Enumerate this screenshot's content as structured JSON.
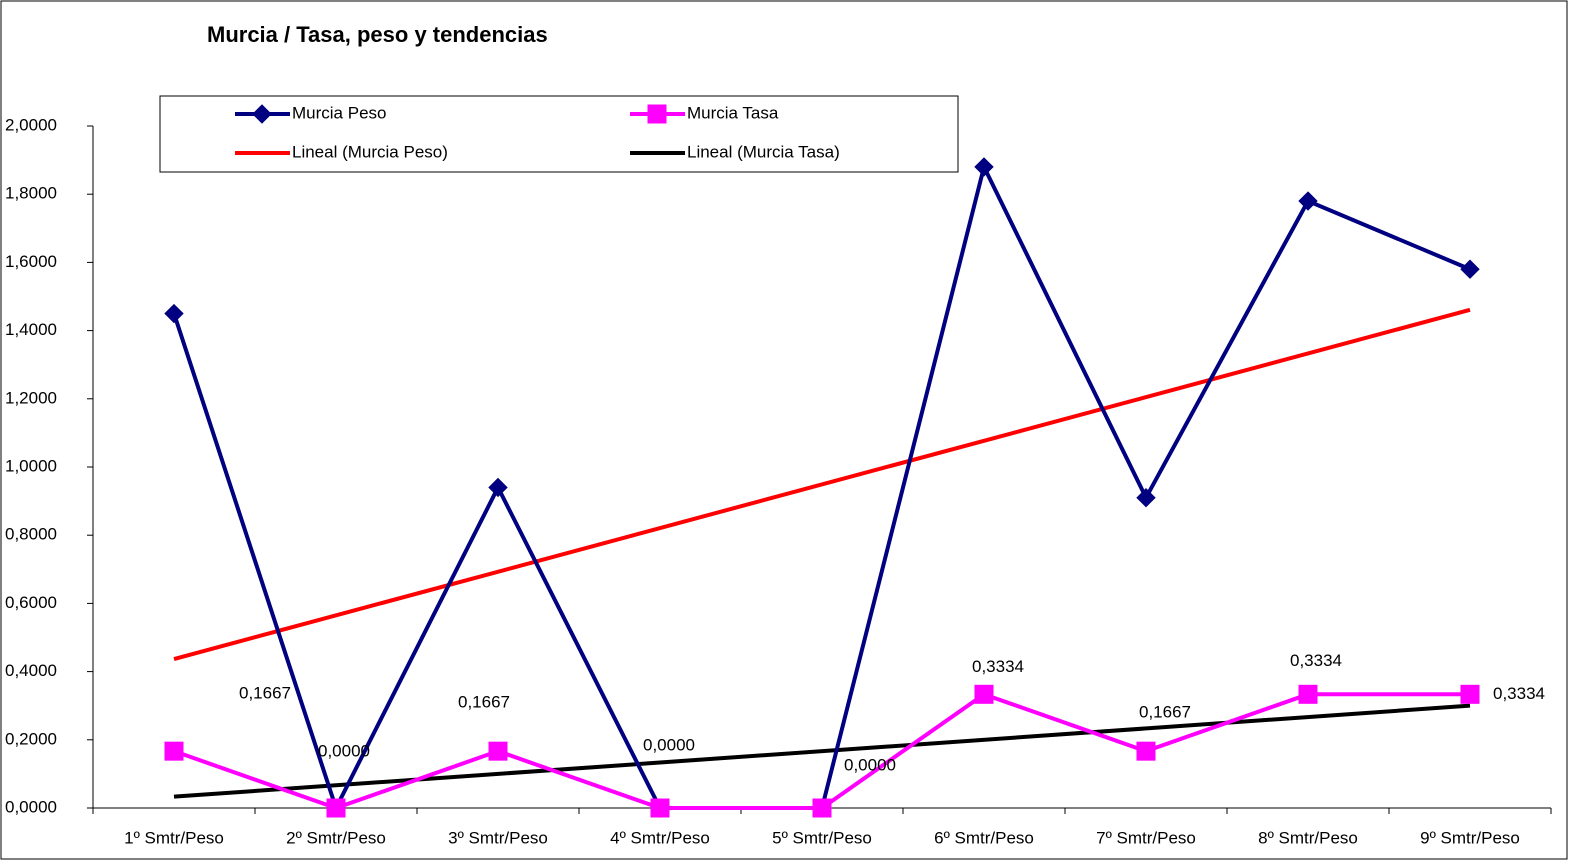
{
  "chart_data": {
    "type": "line",
    "title": "Murcia / Tasa, peso y tendencias",
    "categories": [
      "1º Smtr/Peso",
      "2º Smtr/Peso",
      "3º Smtr/Peso",
      "4º Smtr/Peso",
      "5º Smtr/Peso",
      "6º Smtr/Peso",
      "7º Smtr/Peso",
      "8º Smtr/Peso",
      "9º Smtr/Peso"
    ],
    "series": [
      {
        "name": "Murcia Peso",
        "color": "#000080",
        "marker": "diamond",
        "values": [
          1.45,
          0,
          0.94,
          0,
          0,
          1.88,
          0.91,
          1.78,
          1.58
        ],
        "trendline": {
          "name": "Lineal (Murcia Peso)",
          "color": "#ff0000"
        }
      },
      {
        "name": "Murcia Tasa",
        "color": "#ff00ff",
        "marker": "square",
        "values": [
          0.1667,
          0,
          0.1667,
          0,
          0,
          0.3334,
          0.1667,
          0.3334,
          0.3334
        ],
        "value_labels": [
          "0,1667",
          "0,0000",
          "0,1667",
          "0,0000",
          "0,0000",
          "0,3334",
          "0,1667",
          "0,3334",
          "0,3334"
        ],
        "trendline": {
          "name": "Lineal (Murcia Tasa)",
          "color": "#000000"
        }
      }
    ],
    "ylim": [
      0,
      2
    ],
    "yticks": [
      {
        "value": 0,
        "label": "0,0000"
      },
      {
        "value": 0.2,
        "label": "0,2000"
      },
      {
        "value": 0.4,
        "label": "0,4000"
      },
      {
        "value": 0.6,
        "label": "0,6000"
      },
      {
        "value": 0.8,
        "label": "0,8000"
      },
      {
        "value": 1,
        "label": "1,0000"
      },
      {
        "value": 1.2,
        "label": "1,2000"
      },
      {
        "value": 1.4,
        "label": "1,4000"
      },
      {
        "value": 1.6,
        "label": "1,6000"
      },
      {
        "value": 1.8,
        "label": "1,8000"
      },
      {
        "value": 2,
        "label": "2,0000"
      }
    ],
    "legend": "top-left"
  }
}
